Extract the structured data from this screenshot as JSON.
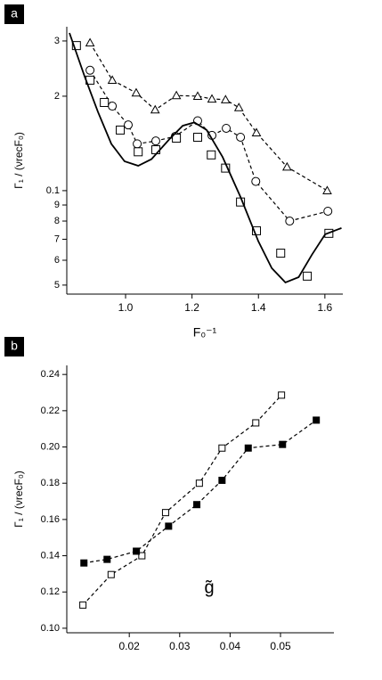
{
  "chart_data": [
    {
      "type": "scatter",
      "panel": "a",
      "ylog": true,
      "x_label": "F₀⁻¹",
      "y_label": "Γ₁ / (νrecF₀)",
      "xlim": [
        0.823,
        1.654
      ],
      "ylim": [
        0.0468,
        0.333
      ],
      "xticks": [
        {
          "value": 1.0,
          "label": "1.0"
        },
        1.2,
        1.4,
        1.6
      ],
      "yticks": [
        {
          "value": 0.3,
          "label": "3"
        },
        {
          "value": 0.2,
          "label": "2"
        },
        0.1,
        {
          "value": 0.09,
          "label": "9"
        },
        {
          "value": 0.08,
          "label": "8"
        },
        {
          "value": 0.07,
          "label": "7"
        },
        {
          "value": 0.06,
          "label": "6"
        },
        {
          "value": 0.05,
          "label": "5"
        }
      ],
      "series": [
        {
          "marker": "triangle",
          "line": "dashed",
          "color": "#000000",
          "x": [
            0.893,
            0.96,
            1.032,
            1.089,
            1.153,
            1.217,
            1.26,
            1.301,
            1.341,
            1.394,
            1.486,
            1.607
          ],
          "values": [
            0.296,
            0.225,
            0.205,
            0.181,
            0.201,
            0.2,
            0.196,
            0.195,
            0.184,
            0.153,
            0.119,
            0.1
          ]
        },
        {
          "marker": "circle",
          "line": "dashed",
          "color": "#000000",
          "x": [
            0.893,
            0.96,
            1.008,
            1.035,
            1.091,
            1.15,
            1.217,
            1.26,
            1.303,
            1.346,
            1.392,
            1.494,
            1.609
          ],
          "values": [
            0.242,
            0.186,
            0.162,
            0.141,
            0.144,
            0.149,
            0.167,
            0.15,
            0.158,
            0.148,
            0.107,
            0.08,
            0.086
          ]
        },
        {
          "marker": "square",
          "line": "none",
          "color": "#000000",
          "x": [
            0.852,
            0.893,
            0.936,
            0.984,
            1.038,
            1.091,
            1.153,
            1.217,
            1.258,
            1.301,
            1.346,
            1.394,
            1.467,
            1.547,
            1.612
          ],
          "values": [
            0.29,
            0.225,
            0.191,
            0.156,
            0.133,
            0.135,
            0.147,
            0.148,
            0.13,
            0.118,
            0.092,
            0.0745,
            0.0632,
            0.0534,
            0.0731
          ]
        },
        {
          "marker": "none",
          "line": "solid",
          "color": "#000000",
          "x": [
            0.831,
            0.877,
            0.917,
            0.957,
            0.997,
            1.038,
            1.078,
            1.132,
            1.172,
            1.207,
            1.244,
            1.292,
            1.346,
            1.4,
            1.44,
            1.481,
            1.521,
            1.561,
            1.601,
            1.65
          ],
          "values": [
            0.318,
            0.231,
            0.178,
            0.141,
            0.124,
            0.12,
            0.126,
            0.146,
            0.161,
            0.165,
            0.156,
            0.128,
            0.0955,
            0.0689,
            0.0566,
            0.051,
            0.053,
            0.0625,
            0.0726,
            0.076
          ]
        }
      ]
    },
    {
      "type": "scatter",
      "panel": "b",
      "ylog": false,
      "x_label": "g̃",
      "y_label": "Γ₁ / (νrecF₀)",
      "xlim": [
        0.0076,
        0.0606
      ],
      "ylim": [
        0.0975,
        0.245
      ],
      "xticks": [
        0.02,
        0.03,
        0.04,
        0.05
      ],
      "yticks": [
        {
          "value": 0.1,
          "label": "0.10"
        },
        0.12,
        0.14,
        0.16,
        0.18,
        {
          "value": 0.2,
          "label": "0.20"
        },
        0.22,
        0.24
      ],
      "series": [
        {
          "marker": "square",
          "line": "dashed",
          "color": "#000000",
          "x": [
            0.0108,
            0.0164,
            0.0225,
            0.0272,
            0.0339,
            0.0384,
            0.0451,
            0.0502
          ],
          "values": [
            0.1128,
            0.1296,
            0.14,
            0.1638,
            0.18,
            0.1994,
            0.2133,
            0.2286
          ]
        },
        {
          "marker": "filled-square",
          "line": "dashed",
          "color": "#000000",
          "x": [
            0.011,
            0.0156,
            0.0214,
            0.0278,
            0.0334,
            0.0384,
            0.0436,
            0.0504,
            0.0571
          ],
          "values": [
            0.136,
            0.138,
            0.1425,
            0.1563,
            0.1682,
            0.1816,
            0.1994,
            0.2014,
            0.2148
          ]
        }
      ]
    }
  ]
}
